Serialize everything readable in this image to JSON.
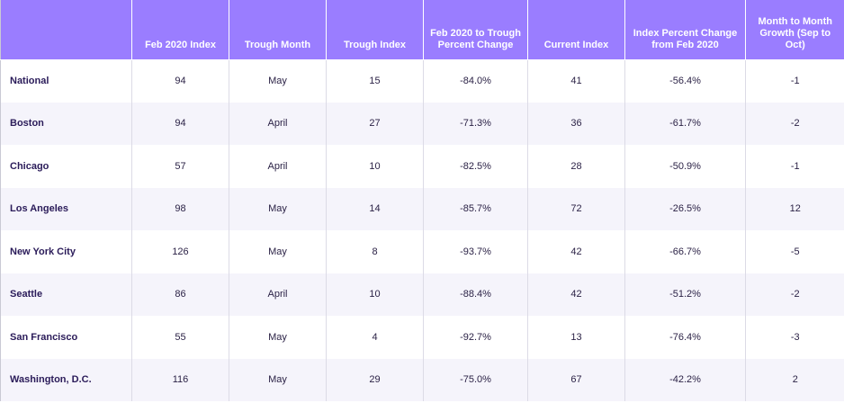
{
  "table": {
    "headers": [
      "",
      "Feb 2020 Index",
      "Trough Month",
      "Trough Index",
      "Feb 2020 to Trough Percent Change",
      "Current Index",
      "Index Percent Change from Feb 2020",
      "Month to Month Growth (Sep to Oct)"
    ],
    "rows": [
      {
        "city": "National",
        "feb_index": "94",
        "trough_month": "May",
        "trough_index": "15",
        "feb_to_trough": "-84.0%",
        "current_index": "41",
        "pct_from_feb": "-56.4%",
        "mom_growth": "-1"
      },
      {
        "city": "Boston",
        "feb_index": "94",
        "trough_month": "April",
        "trough_index": "27",
        "feb_to_trough": "-71.3%",
        "current_index": "36",
        "pct_from_feb": "-61.7%",
        "mom_growth": "-2"
      },
      {
        "city": "Chicago",
        "feb_index": "57",
        "trough_month": "April",
        "trough_index": "10",
        "feb_to_trough": "-82.5%",
        "current_index": "28",
        "pct_from_feb": "-50.9%",
        "mom_growth": "-1"
      },
      {
        "city": "Los Angeles",
        "feb_index": "98",
        "trough_month": "May",
        "trough_index": "14",
        "feb_to_trough": "-85.7%",
        "current_index": "72",
        "pct_from_feb": "-26.5%",
        "mom_growth": "12"
      },
      {
        "city": "New York City",
        "feb_index": "126",
        "trough_month": "May",
        "trough_index": "8",
        "feb_to_trough": "-93.7%",
        "current_index": "42",
        "pct_from_feb": "-66.7%",
        "mom_growth": "-5"
      },
      {
        "city": "Seattle",
        "feb_index": "86",
        "trough_month": "April",
        "trough_index": "10",
        "feb_to_trough": "-88.4%",
        "current_index": "42",
        "pct_from_feb": "-51.2%",
        "mom_growth": "-2"
      },
      {
        "city": "San Francisco",
        "feb_index": "55",
        "trough_month": "May",
        "trough_index": "4",
        "feb_to_trough": "-92.7%",
        "current_index": "13",
        "pct_from_feb": "-76.4%",
        "mom_growth": "-3"
      },
      {
        "city": "Washington, D.C.",
        "feb_index": "116",
        "trough_month": "May",
        "trough_index": "29",
        "feb_to_trough": "-75.0%",
        "current_index": "67",
        "pct_from_feb": "-42.2%",
        "mom_growth": "2"
      }
    ]
  },
  "colors": {
    "header_bg": "#9a7dff",
    "header_text": "#ffffff",
    "row_alt_bg": "#f5f4fb",
    "city_text": "#2a1b59"
  }
}
